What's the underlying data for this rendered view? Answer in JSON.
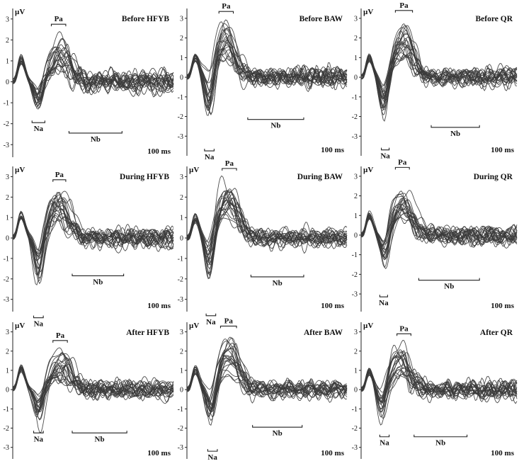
{
  "figure": {
    "y_unit": "µV",
    "time_scale_label": "100 ms",
    "line_color": "#3a3a3a",
    "axis_color": "#222222",
    "background": "#ffffff"
  },
  "chart_data": [
    {
      "type": "line",
      "row": "Before",
      "method": "HFYB",
      "title": "Before HFYB",
      "ylabel": "µV",
      "yticks": [
        -3,
        -2,
        -1,
        0,
        1,
        2,
        3
      ],
      "ylim": [
        -3.6,
        3.5
      ],
      "xlim": [
        0,
        1
      ],
      "scale_label": "100 ms",
      "n_traces": 22,
      "peaks": {
        "P0": [
          0.05,
          1.1
        ],
        "Na": [
          0.16,
          -1.5
        ],
        "Pa": [
          0.29,
          2.0
        ]
      },
      "annotations": [
        {
          "label": "Pa",
          "x0": 0.24,
          "x1": 0.33,
          "y": 2.75,
          "text_side": "above"
        },
        {
          "label": "Na",
          "x0": 0.12,
          "x1": 0.2,
          "y": -1.95,
          "text_side": "below"
        },
        {
          "label": "Nb",
          "x0": 0.35,
          "x1": 0.68,
          "y": -2.45,
          "text_side": "below"
        }
      ]
    },
    {
      "type": "line",
      "row": "Before",
      "method": "BAW",
      "title": "Before BAW",
      "ylabel": "",
      "yticks": [
        -3,
        -2,
        -1,
        0,
        1,
        2,
        3
      ],
      "ylim": [
        -4.0,
        3.5
      ],
      "xlim": [
        0,
        1
      ],
      "scale_label": "100 ms",
      "n_traces": 22,
      "peaks": {
        "P0": [
          0.05,
          1.0
        ],
        "Na": [
          0.14,
          -2.5
        ],
        "Pa": [
          0.24,
          2.8
        ]
      },
      "annotations": [
        {
          "label": "Pa",
          "x0": 0.2,
          "x1": 0.29,
          "y": 3.35,
          "text_side": "above"
        },
        {
          "label": "Na",
          "x0": 0.11,
          "x1": 0.17,
          "y": -3.75,
          "text_side": "below"
        },
        {
          "label": "Nb",
          "x0": 0.38,
          "x1": 0.73,
          "y": -2.15,
          "text_side": "below"
        }
      ]
    },
    {
      "type": "line",
      "row": "Before",
      "method": "QR",
      "title": "Before QR",
      "ylabel": "µV",
      "yticks": [
        -3,
        -2,
        -1,
        0,
        1,
        2,
        3
      ],
      "ylim": [
        -4.0,
        3.5
      ],
      "xlim": [
        0,
        1
      ],
      "scale_label": "100 ms",
      "n_traces": 22,
      "peaks": {
        "P0": [
          0.05,
          1.0
        ],
        "Na": [
          0.15,
          -2.0
        ],
        "Pa": [
          0.27,
          2.7
        ]
      },
      "annotations": [
        {
          "label": "Pa",
          "x0": 0.22,
          "x1": 0.33,
          "y": 3.4,
          "text_side": "above"
        },
        {
          "label": "Na",
          "x0": 0.13,
          "x1": 0.18,
          "y": -3.7,
          "text_side": "below"
        },
        {
          "label": "Nb",
          "x0": 0.45,
          "x1": 0.76,
          "y": -2.55,
          "text_side": "below"
        }
      ]
    },
    {
      "type": "line",
      "row": "During",
      "method": "HFYB",
      "title": "During HFYB",
      "ylabel": "µV",
      "yticks": [
        -3,
        -2,
        -1,
        0,
        1,
        2,
        3
      ],
      "ylim": [
        -3.6,
        3.5
      ],
      "xlim": [
        0,
        1
      ],
      "scale_label": "100 ms",
      "n_traces": 22,
      "peaks": {
        "P0": [
          0.05,
          1.1
        ],
        "Na": [
          0.16,
          -2.2
        ],
        "Pa": [
          0.29,
          1.9
        ]
      },
      "annotations": [
        {
          "label": "Pa",
          "x0": 0.25,
          "x1": 0.33,
          "y": 2.85,
          "text_side": "above"
        },
        {
          "label": "Na",
          "x0": 0.13,
          "x1": 0.19,
          "y": -3.9,
          "text_side": "below"
        },
        {
          "label": "Nb",
          "x0": 0.37,
          "x1": 0.69,
          "y": -1.85,
          "text_side": "below"
        }
      ]
    },
    {
      "type": "line",
      "row": "During",
      "method": "BAW",
      "title": "During BAW",
      "ylabel": "µV",
      "yticks": [
        -3,
        -2,
        -1,
        0,
        1,
        2,
        3
      ],
      "ylim": [
        -3.6,
        3.5
      ],
      "xlim": [
        0,
        1
      ],
      "scale_label": "100 ms",
      "n_traces": 22,
      "peaks": {
        "P0": [
          0.05,
          1.0
        ],
        "Na": [
          0.14,
          -2.4
        ],
        "Pa": [
          0.25,
          2.8
        ]
      },
      "annotations": [
        {
          "label": "Pa",
          "x0": 0.22,
          "x1": 0.31,
          "y": 3.4,
          "text_side": "above"
        },
        {
          "label": "Na",
          "x0": 0.12,
          "x1": 0.18,
          "y": -3.8,
          "text_side": "below"
        },
        {
          "label": "Nb",
          "x0": 0.4,
          "x1": 0.73,
          "y": -1.9,
          "text_side": "below"
        }
      ]
    },
    {
      "type": "line",
      "row": "During",
      "method": "QR",
      "title": "During QR",
      "ylabel": "µV",
      "yticks": [
        -3,
        -2,
        -1,
        0,
        1,
        2,
        3
      ],
      "ylim": [
        -3.9,
        3.5
      ],
      "xlim": [
        0,
        1
      ],
      "scale_label": "100 ms",
      "n_traces": 22,
      "peaks": {
        "P0": [
          0.05,
          1.0
        ],
        "Na": [
          0.15,
          -1.9
        ],
        "Pa": [
          0.27,
          2.3
        ]
      },
      "annotations": [
        {
          "label": "Pa",
          "x0": 0.22,
          "x1": 0.31,
          "y": 3.45,
          "text_side": "above"
        },
        {
          "label": "Na",
          "x0": 0.12,
          "x1": 0.17,
          "y": -3.15,
          "text_side": "below"
        },
        {
          "label": "Nb",
          "x0": 0.37,
          "x1": 0.76,
          "y": -2.3,
          "text_side": "below"
        }
      ]
    },
    {
      "type": "line",
      "row": "After",
      "method": "HFYB",
      "title": "After HFYB",
      "ylabel": "µV",
      "yticks": [
        -3,
        -2,
        -1,
        0,
        1,
        2,
        3
      ],
      "ylim": [
        -3.6,
        3.5
      ],
      "xlim": [
        0,
        1
      ],
      "scale_label": "100 ms",
      "n_traces": 22,
      "peaks": {
        "P0": [
          0.05,
          1.1
        ],
        "Na": [
          0.16,
          -1.5
        ],
        "Pa": [
          0.3,
          1.8
        ]
      },
      "annotations": [
        {
          "label": "Pa",
          "x0": 0.25,
          "x1": 0.34,
          "y": 2.55,
          "text_side": "above"
        },
        {
          "label": "Na",
          "x0": 0.13,
          "x1": 0.19,
          "y": -2.25,
          "text_side": "below"
        },
        {
          "label": "Nb",
          "x0": 0.37,
          "x1": 0.71,
          "y": -2.25,
          "text_side": "below"
        }
      ]
    },
    {
      "type": "line",
      "row": "After",
      "method": "BAW",
      "title": "After BAW",
      "ylabel": "µV",
      "yticks": [
        -3,
        -2,
        -1,
        0,
        1,
        2,
        3
      ],
      "ylim": [
        -3.6,
        3.5
      ],
      "xlim": [
        0,
        1
      ],
      "scale_label": "100 ms",
      "n_traces": 22,
      "peaks": {
        "P0": [
          0.05,
          1.0
        ],
        "Na": [
          0.15,
          -2.0
        ],
        "Pa": [
          0.26,
          2.6
        ]
      },
      "annotations": [
        {
          "label": "Pa",
          "x0": 0.21,
          "x1": 0.31,
          "y": 3.3,
          "text_side": "above"
        },
        {
          "label": "Na",
          "x0": 0.13,
          "x1": 0.19,
          "y": -3.2,
          "text_side": "below"
        },
        {
          "label": "Nb",
          "x0": 0.41,
          "x1": 0.72,
          "y": -1.95,
          "text_side": "below"
        }
      ]
    },
    {
      "type": "line",
      "row": "After",
      "method": "QR",
      "title": "After QR",
      "ylabel": "µV",
      "yticks": [
        -3,
        -2,
        -1,
        0,
        1,
        2,
        3
      ],
      "ylim": [
        -3.6,
        3.5
      ],
      "xlim": [
        0,
        1
      ],
      "scale_label": "100 ms",
      "n_traces": 22,
      "peaks": {
        "P0": [
          0.05,
          1.0
        ],
        "Na": [
          0.14,
          -1.7
        ],
        "Pa": [
          0.25,
          2.1
        ]
      },
      "annotations": [
        {
          "label": "Pa",
          "x0": 0.23,
          "x1": 0.32,
          "y": 2.9,
          "text_side": "above"
        },
        {
          "label": "Na",
          "x0": 0.12,
          "x1": 0.18,
          "y": -2.45,
          "text_side": "below"
        },
        {
          "label": "Nb",
          "x0": 0.34,
          "x1": 0.68,
          "y": -2.45,
          "text_side": "below"
        }
      ]
    }
  ]
}
